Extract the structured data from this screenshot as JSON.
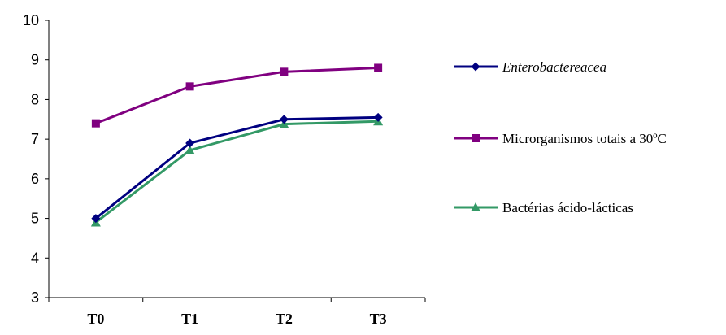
{
  "chart_data": {
    "type": "line",
    "categories": [
      "T0",
      "T1",
      "T2",
      "T3"
    ],
    "ylim": [
      3,
      10
    ],
    "yticks": [
      3,
      4,
      5,
      6,
      7,
      8,
      9,
      10
    ],
    "grid": false,
    "legend_position": "right",
    "series": [
      {
        "name": "Enterobactereacea",
        "values": [
          5.0,
          6.9,
          7.5,
          7.55
        ],
        "color": "#000080",
        "marker": "diamond",
        "italic": true
      },
      {
        "name": "Microrganismos totais a 30ºC",
        "values": [
          7.4,
          8.33,
          8.7,
          8.8
        ],
        "color": "#800080",
        "marker": "square",
        "italic": false
      },
      {
        "name": "Bactérias ácido-lácticas",
        "values": [
          4.9,
          6.72,
          7.38,
          7.45
        ],
        "color": "#339966",
        "marker": "triangle",
        "italic": false
      }
    ]
  }
}
